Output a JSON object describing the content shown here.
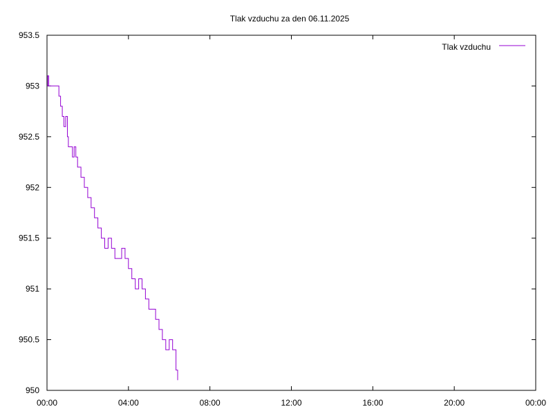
{
  "chart_data": {
    "type": "line",
    "title": "Tlak vzduchu za den 06.11.2025",
    "xlabel": "",
    "ylabel": "",
    "xlim": [
      "00:00",
      "24:00"
    ],
    "ylim": [
      950,
      953.5
    ],
    "x_ticks": [
      "00:00",
      "04:00",
      "08:00",
      "12:00",
      "16:00",
      "20:00",
      "00:00"
    ],
    "y_ticks": [
      "950",
      "950.5",
      "951",
      "951.5",
      "952",
      "952.5",
      "953",
      "953.5"
    ],
    "grid": false,
    "legend_position": "top-right",
    "colors": {
      "series": "#9400d3",
      "axes": "#000000"
    },
    "series": [
      {
        "name": "Tlak vzduchu",
        "x": [
          "00:00",
          "00:02",
          "00:05",
          "00:10",
          "00:20",
          "00:30",
          "00:35",
          "00:40",
          "00:45",
          "00:50",
          "00:55",
          "01:00",
          "01:03",
          "01:06",
          "01:10",
          "01:15",
          "01:20",
          "01:25",
          "01:30",
          "01:35",
          "01:40",
          "01:45",
          "01:50",
          "02:00",
          "02:10",
          "02:20",
          "02:30",
          "02:40",
          "02:50",
          "03:00",
          "03:10",
          "03:20",
          "03:30",
          "03:40",
          "03:50",
          "04:00",
          "04:10",
          "04:20",
          "04:30",
          "04:40",
          "04:50",
          "05:00",
          "05:10",
          "05:20",
          "05:30",
          "05:40",
          "05:50",
          "06:00",
          "06:10",
          "06:20",
          "06:25"
        ],
        "values": [
          953.0,
          953.1,
          953.0,
          953.0,
          953.0,
          953.0,
          952.9,
          952.8,
          952.7,
          952.6,
          952.7,
          952.5,
          952.4,
          952.4,
          952.4,
          952.3,
          952.4,
          952.3,
          952.2,
          952.2,
          952.1,
          952.1,
          952.0,
          951.9,
          951.8,
          951.7,
          951.6,
          951.5,
          951.4,
          951.5,
          951.4,
          951.3,
          951.3,
          951.4,
          951.3,
          951.2,
          951.1,
          951.0,
          951.1,
          951.0,
          950.9,
          950.8,
          950.8,
          950.7,
          950.6,
          950.5,
          950.4,
          950.5,
          950.4,
          950.2,
          950.1
        ]
      }
    ]
  }
}
